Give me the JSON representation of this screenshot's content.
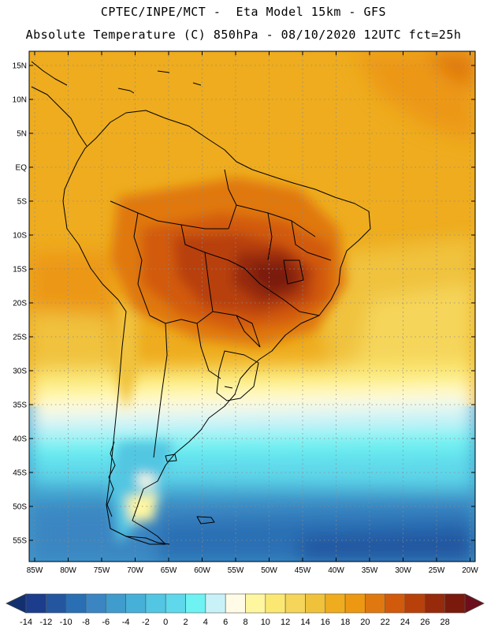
{
  "header": {
    "line1": "CPTEC/INPE/MCT -  Eta Model 15km - GFS",
    "line2": "Absolute Temperature (C) 850hPa - 08/10/2020 12UTC fct=25h"
  },
  "map": {
    "lat_labels": [
      "15N",
      "10N",
      "5N",
      "EQ",
      "5S",
      "10S",
      "15S",
      "20S",
      "25S",
      "30S",
      "35S",
      "40S",
      "45S",
      "50S",
      "55S"
    ],
    "lon_labels": [
      "85W",
      "80W",
      "75W",
      "70W",
      "65W",
      "60W",
      "55W",
      "50W",
      "45W",
      "40W",
      "35W",
      "30W",
      "25W",
      "20W"
    ]
  },
  "colorbar": {
    "labels": [
      "-14",
      "-12",
      "-10",
      "-8",
      "-6",
      "-4",
      "-2",
      "0",
      "2",
      "4",
      "6",
      "8",
      "10",
      "12",
      "14",
      "16",
      "18",
      "20",
      "22",
      "24",
      "26",
      "28"
    ],
    "colors": [
      "#1c3c8c",
      "#2456a0",
      "#2a6fb4",
      "#3b86c2",
      "#3f9ccc",
      "#46b0d8",
      "#52c6e2",
      "#5ed8ea",
      "#6ef2f2",
      "#c8f2f8",
      "#fffbe6",
      "#fff6a0",
      "#fbe873",
      "#f5d55a",
      "#f0c23c",
      "#eeac1e",
      "#ec9812",
      "#e07810",
      "#d25a0c",
      "#b8400a",
      "#962a0a",
      "#7a1a0c"
    ],
    "under_color": "#123070",
    "over_color": "#6c0e1c"
  }
}
